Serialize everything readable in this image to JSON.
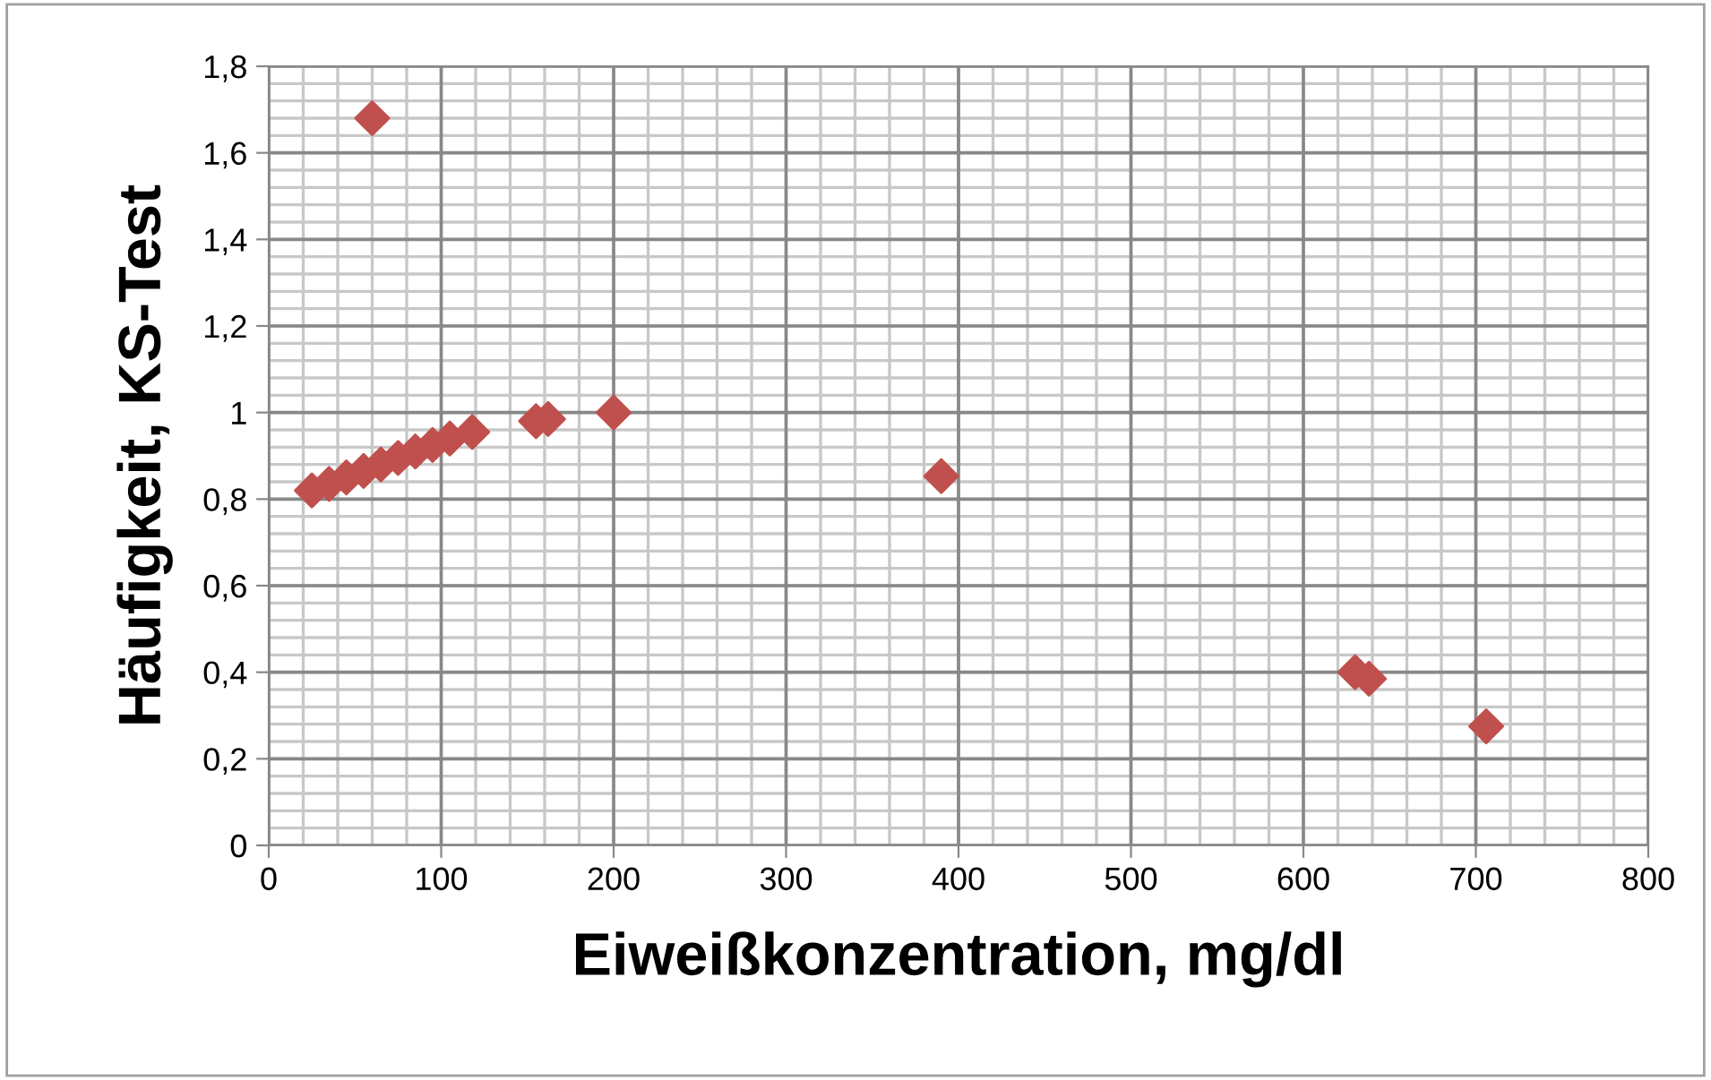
{
  "chart_data": {
    "type": "scatter",
    "xlabel": "Eiweißkonzentration, mg/dl",
    "ylabel": "Häufigkeit, KS-Test",
    "x": [
      25,
      35,
      45,
      55,
      65,
      75,
      85,
      95,
      105,
      118,
      155,
      162,
      200,
      390,
      60,
      630,
      638,
      706
    ],
    "series": [
      {
        "color": "#c0504d",
        "values": [
          0.82,
          0.835,
          0.85,
          0.865,
          0.88,
          0.895,
          0.91,
          0.925,
          0.94,
          0.955,
          0.98,
          0.985,
          1.0,
          0.853,
          1.68,
          0.4,
          0.385,
          0.275
        ]
      }
    ],
    "marker": "diamond",
    "grid": true,
    "xlim": [
      0,
      800
    ],
    "xticks": [
      0,
      100,
      200,
      300,
      400,
      500,
      600,
      700,
      800
    ],
    "ylim": [
      0,
      1.8
    ],
    "yticks": [
      0,
      {
        "value": 0.2,
        "label": "0,2"
      },
      {
        "value": 0.4,
        "label": "0,4"
      },
      {
        "value": 0.6,
        "label": "0,6"
      },
      {
        "value": 0.8,
        "label": "0,8"
      },
      1,
      {
        "value": 1.2,
        "label": "1,2"
      },
      {
        "value": 1.4,
        "label": "1,4"
      },
      {
        "value": 1.6,
        "label": "1,6"
      },
      {
        "value": 1.8,
        "label": "1,8"
      }
    ]
  }
}
